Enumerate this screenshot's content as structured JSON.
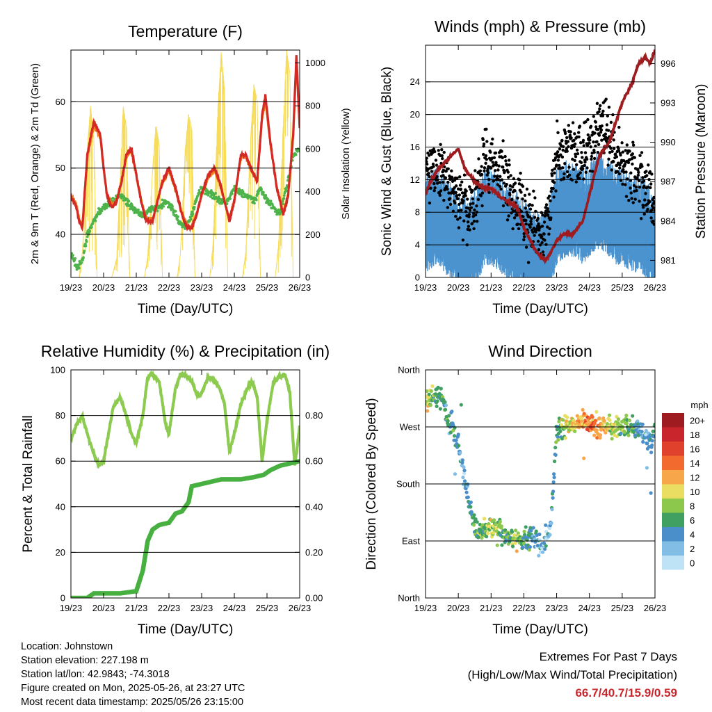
{
  "time_ticks": [
    "19/23",
    "20/23",
    "21/23",
    "22/23",
    "23/23",
    "24/23",
    "25/23",
    "26/23"
  ],
  "info": {
    "location": "Location: Johnstown",
    "elevation": "Station elevation: 227.198 m",
    "latlon": "Station lat/lon: 42.9843; -74.3018",
    "created": "Figure created on Mon, 2025-05-26, at 23:27 UTC",
    "recent": "Most recent data timestamp: 2025/05/26 23:15:00"
  },
  "extremes": {
    "title": "Extremes For Past 7 Days",
    "subtitle": "(High/Low/Max Wind/Total Precipitation)",
    "values": "66.7/40.7/15.9/0.59"
  },
  "colors": {
    "temp_2m": "#d42a26",
    "temp_9m": "#f07e1d",
    "dewpoint": "#4db34a",
    "insolation": "#f6dc5a",
    "wind": "#4a93cf",
    "gust": "#000000",
    "pressure": "#9e1b20",
    "rh": "#8ccb4f",
    "precip": "#48b040"
  },
  "chart_data": [
    {
      "id": "temperature",
      "type": "line",
      "title": "Temperature (F)",
      "xlabel": "Time (Day/UTC)",
      "ylabel": "2m & 9m T (Red, Orange) & 2m Td (Green)",
      "y2label": "Solar Insolation (Yellow)",
      "xlim": [
        0,
        7
      ],
      "ylim": [
        33.5,
        67.8
      ],
      "y2lim": [
        0,
        1060
      ],
      "yticks": [
        40,
        50,
        60
      ],
      "y2ticks": [
        0,
        200,
        400,
        600,
        800,
        1000
      ],
      "grid": true,
      "series": [
        {
          "x": [
            0,
            0.15,
            0.25,
            0.35,
            0.5,
            0.7,
            0.9,
            1.0,
            1.1,
            1.25,
            1.4,
            1.55,
            1.7,
            1.85,
            2.0,
            2.15,
            2.3,
            2.5,
            2.6,
            2.7,
            2.8,
            3.0,
            3.2,
            3.4,
            3.55,
            3.7,
            3.85,
            4.0,
            4.2,
            4.4,
            4.55,
            4.7,
            4.85,
            5.0,
            5.2,
            5.35,
            5.5,
            5.7,
            5.85,
            5.95,
            6.1,
            6.3,
            6.5,
            6.65,
            6.8,
            6.9,
            7.0
          ],
          "values": [
            45.5,
            44.5,
            42,
            41,
            52,
            57,
            55,
            50,
            46,
            44,
            45,
            48,
            52,
            53,
            49,
            45,
            42,
            42,
            44,
            46,
            48,
            50,
            47,
            43,
            41,
            41,
            43,
            46,
            49,
            50,
            48,
            45,
            42,
            45,
            52,
            52,
            50,
            48,
            58,
            61,
            54,
            47,
            43,
            46,
            55,
            67,
            56
          ]
        },
        {
          "x": [
            0,
            0.15,
            0.25,
            0.35,
            0.5,
            0.7,
            0.9,
            1.0,
            1.1,
            1.25,
            1.4,
            1.55,
            1.7,
            1.85,
            2.0,
            2.15,
            2.3,
            2.5,
            2.6,
            2.7,
            2.8,
            3.0,
            3.2,
            3.4,
            3.55,
            3.7,
            3.85,
            4.0,
            4.2,
            4.4,
            4.55,
            4.7,
            4.85,
            5.0,
            5.2,
            5.35,
            5.5,
            5.7,
            5.85,
            5.95,
            6.1,
            6.3,
            6.5,
            6.65,
            6.8,
            6.9,
            7.0
          ],
          "values": [
            45.8,
            44.8,
            42.3,
            41.3,
            51.5,
            56.5,
            54.6,
            49.7,
            46.2,
            44.3,
            45.2,
            48.1,
            51.8,
            52.6,
            48.8,
            45.1,
            42.3,
            42.2,
            44.1,
            46,
            47.8,
            49.6,
            46.8,
            43.2,
            41.3,
            41.2,
            43.1,
            45.8,
            48.6,
            49.6,
            47.7,
            44.9,
            42.3,
            45.2,
            51.6,
            51.7,
            49.8,
            48.1,
            57.5,
            60.4,
            53.7,
            47.1,
            43.3,
            46.1,
            54.5,
            66.2,
            56
          ]
        },
        {
          "x": [
            0,
            0.2,
            0.35,
            0.5,
            0.8,
            1.0,
            1.3,
            1.5,
            1.7,
            1.9,
            2.1,
            2.3,
            2.5,
            2.7,
            2.9,
            3.1,
            3.3,
            3.5,
            3.7,
            3.9,
            4.0,
            4.3,
            4.6,
            4.8,
            5.0,
            5.3,
            5.6,
            5.8,
            6.0,
            6.2,
            6.4,
            6.6,
            6.8,
            7.0
          ],
          "values": [
            37,
            35,
            36,
            40,
            43,
            44,
            45,
            46,
            45,
            44,
            43,
            43,
            44,
            44,
            45,
            44,
            42,
            41,
            43,
            46,
            47,
            46,
            45,
            45,
            47,
            46,
            45,
            47,
            45,
            44,
            43,
            47,
            52,
            53
          ]
        },
        {
          "x": [
            0,
            0.25,
            0.35,
            0.5,
            0.6,
            0.7,
            0.8,
            1.25,
            1.4,
            1.5,
            1.6,
            1.7,
            1.8,
            2.25,
            2.35,
            2.5,
            2.6,
            2.7,
            2.8,
            3.25,
            3.35,
            3.5,
            3.6,
            3.7,
            3.8,
            4.25,
            4.35,
            4.5,
            4.6,
            4.7,
            4.8,
            5.25,
            5.35,
            5.5,
            5.6,
            5.7,
            5.8,
            6.25,
            6.35,
            6.5,
            6.6,
            6.7,
            6.8,
            7.0
          ],
          "values": [
            0,
            0,
            120,
            600,
            800,
            650,
            0,
            0,
            90,
            450,
            800,
            700,
            0,
            0,
            100,
            500,
            720,
            620,
            0,
            0,
            110,
            600,
            760,
            690,
            0,
            0,
            160,
            800,
            1050,
            880,
            0,
            0,
            120,
            650,
            900,
            820,
            0,
            0,
            150,
            720,
            1060,
            950,
            0,
            0
          ]
        }
      ]
    },
    {
      "id": "winds",
      "type": "scatter",
      "title": "Winds (mph) & Pressure (mb)",
      "xlabel": "Time (Day/UTC)",
      "ylabel": "Sonic Wind & Gust (Blue, Black)",
      "y2label": "Station Pressure (Maroon)",
      "xlim": [
        0,
        7
      ],
      "ylim": [
        0,
        28.5
      ],
      "y2lim": [
        979.7,
        997.4
      ],
      "yticks": [
        0,
        4,
        8,
        12,
        16,
        20,
        24
      ],
      "y2ticks": [
        981,
        984,
        987,
        990,
        993,
        996
      ],
      "grid": true,
      "series": [
        {
          "x": [
            0,
            0.3,
            0.6,
            0.8,
            1.0,
            1.3,
            1.6,
            1.8,
            2.0,
            2.3,
            2.5,
            2.8,
            3.0,
            3.3,
            3.6,
            3.8,
            4.0,
            4.3,
            4.6,
            4.8,
            5.0,
            5.3,
            5.6,
            5.8,
            6.0,
            6.3,
            6.6,
            6.8,
            7.0
          ],
          "values": [
            6,
            7,
            6,
            5,
            4,
            3,
            5,
            7,
            7,
            6,
            5,
            4,
            3,
            2,
            1.5,
            4,
            7,
            8,
            8,
            7,
            8,
            9,
            8,
            7,
            7,
            6,
            6,
            5,
            4
          ]
        },
        {
          "x": [
            0,
            0.3,
            0.6,
            0.8,
            1.0,
            1.3,
            1.6,
            1.8,
            2.0,
            2.3,
            2.5,
            2.8,
            3.0,
            3.3,
            3.6,
            3.8,
            4.0,
            4.3,
            4.6,
            4.8,
            5.0,
            5.3,
            5.6,
            5.8,
            6.0,
            6.3,
            6.6,
            6.8,
            7.0
          ],
          "values": [
            13,
            14,
            12,
            11,
            10,
            8,
            11,
            14,
            15,
            13,
            11,
            10,
            8,
            6,
            5,
            9,
            15,
            16,
            16,
            15,
            16,
            18,
            17,
            15,
            14,
            13,
            12,
            11,
            9
          ]
        },
        {
          "x": [
            0,
            0.15,
            0.4,
            0.6,
            0.8,
            1.0,
            1.2,
            1.5,
            1.8,
            2.0,
            2.2,
            2.5,
            2.8,
            3.0,
            3.3,
            3.5,
            3.65,
            3.8,
            4.0,
            4.2,
            4.5,
            4.8,
            5.0,
            5.3,
            5.6,
            5.8,
            6.0,
            6.3,
            6.5,
            6.7,
            6.85,
            7.0
          ],
          "values": [
            986,
            987,
            988,
            988.5,
            989,
            989.5,
            988,
            987,
            986.5,
            986.5,
            986,
            985.5,
            985,
            983.5,
            982,
            981.3,
            981,
            981.5,
            982.5,
            983,
            983,
            984,
            986,
            989,
            990,
            991.5,
            993,
            994.5,
            996,
            996.5,
            996,
            997
          ]
        }
      ]
    },
    {
      "id": "humidity",
      "type": "line",
      "title": "Relative Humidity (%) & Precipitation (in)",
      "xlabel": "Time (Day/UTC)",
      "ylabel": "Percent & Total Rainfall",
      "xlim": [
        0,
        7
      ],
      "ylim": [
        0,
        100
      ],
      "y2lim": [
        0,
        1
      ],
      "yticks": [
        0,
        20,
        40,
        60,
        80,
        100
      ],
      "y2ticks": [
        0.0,
        0.2,
        0.4,
        0.6,
        0.8
      ],
      "grid": true,
      "series": [
        {
          "x": [
            0,
            0.15,
            0.35,
            0.5,
            0.65,
            0.85,
            1.0,
            1.15,
            1.3,
            1.5,
            1.65,
            1.85,
            2.0,
            2.2,
            2.35,
            2.5,
            2.7,
            2.9,
            3.0,
            3.2,
            3.35,
            3.5,
            3.7,
            3.9,
            4.0,
            4.2,
            4.4,
            4.55,
            4.7,
            4.85,
            5.0,
            5.2,
            5.4,
            5.55,
            5.7,
            5.85,
            6.0,
            6.2,
            6.4,
            6.55,
            6.7,
            6.85,
            7.0
          ],
          "values": [
            70,
            75,
            80,
            72,
            65,
            58,
            60,
            72,
            84,
            88,
            82,
            72,
            68,
            80,
            97,
            98,
            95,
            76,
            72,
            92,
            98,
            98,
            95,
            88,
            90,
            97,
            95,
            92,
            85,
            64,
            72,
            85,
            92,
            95,
            88,
            60,
            78,
            95,
            97,
            98,
            90,
            58,
            75
          ]
        },
        {
          "x": [
            0,
            0.5,
            0.7,
            1.0,
            1.5,
            2.0,
            2.2,
            2.35,
            2.5,
            2.7,
            3.0,
            3.2,
            3.4,
            3.6,
            3.7,
            4.0,
            4.3,
            4.6,
            4.8,
            5.2,
            5.6,
            5.9,
            6.1,
            6.4,
            6.7,
            7.0
          ],
          "values": [
            0.0,
            0.0,
            0.02,
            0.02,
            0.02,
            0.03,
            0.12,
            0.25,
            0.3,
            0.32,
            0.33,
            0.37,
            0.38,
            0.42,
            0.49,
            0.5,
            0.51,
            0.52,
            0.52,
            0.52,
            0.53,
            0.54,
            0.56,
            0.58,
            0.59,
            0.6
          ]
        }
      ]
    },
    {
      "id": "wind_direction",
      "type": "scatter",
      "title": "Wind Direction",
      "xlabel": "Time (Day/UTC)",
      "ylabel": "Direction (Colored By Speed)",
      "xlim": [
        0,
        7
      ],
      "ylim": [
        0,
        360
      ],
      "yticklabels": [
        "North",
        "East",
        "South",
        "West",
        "North"
      ],
      "yticks": [
        0,
        90,
        180,
        270,
        360
      ],
      "grid": true,
      "legend": {
        "title": "mph",
        "labels": [
          "20+",
          "18",
          "16",
          "14",
          "12",
          "10",
          "8",
          "6",
          "4",
          "2",
          "0"
        ],
        "colors": [
          "#9e1b20",
          "#c8262c",
          "#e0412c",
          "#f26a2e",
          "#f8a64a",
          "#e9de62",
          "#8cc84c",
          "#3fa062",
          "#4a8fc9",
          "#82bde6",
          "#bfe3f6"
        ]
      },
      "series": [
        {
          "x": [
            0,
            0.2,
            0.4,
            0.6,
            0.8,
            1.0,
            1.2,
            1.4,
            1.6,
            1.8,
            2.0,
            2.2,
            2.4,
            2.6,
            2.8,
            3.0,
            3.2,
            3.4,
            3.6,
            3.8,
            4.0,
            4.2,
            4.5,
            4.8,
            5.0,
            5.3,
            5.6,
            5.9,
            6.2,
            6.5,
            6.7,
            6.9,
            7.0
          ],
          "values": [
            310,
            318,
            322,
            300,
            270,
            240,
            190,
            130,
            100,
            105,
            110,
            115,
            100,
            95,
            90,
            92,
            95,
            90,
            85,
            100,
            260,
            270,
            275,
            280,
            275,
            270,
            272,
            268,
            270,
            265,
            255,
            240,
            280
          ],
          "speeds": [
            10,
            7,
            5,
            6,
            5,
            4,
            3,
            5,
            6,
            7,
            9,
            8,
            6,
            7,
            8,
            6,
            5,
            4,
            3,
            3,
            6,
            8,
            10,
            12,
            14,
            12,
            10,
            8,
            6,
            4,
            3,
            5,
            4
          ]
        }
      ]
    }
  ]
}
